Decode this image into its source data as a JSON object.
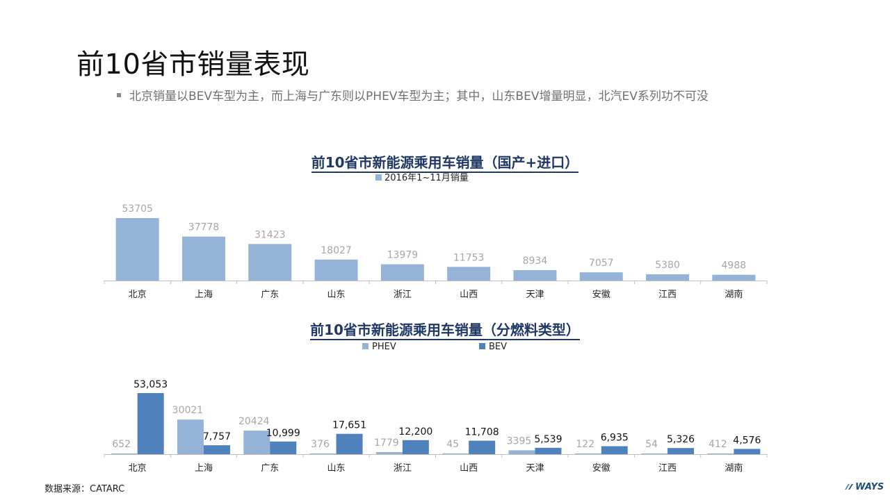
{
  "page": {
    "title": "前10省市销量表现",
    "bullet": "北京销量以BEV车型为主，而上海与广东则以PHEV车型为主；其中，山东BEV增量明显，北汽EV系列功不可没",
    "source": "数据来源：CATARC",
    "logo_text": "WAYS"
  },
  "colors": {
    "light_blue": "#95b3d7",
    "dark_blue": "#4f81bd",
    "title_navy": "#1f3864",
    "gray_label": "#a6a6a6",
    "axis": "#bfbfbf"
  },
  "chart_data": [
    {
      "type": "bar",
      "title": "前10省市新能源乘用车销量（国产+进口）",
      "categories": [
        "北京",
        "上海",
        "广东",
        "山东",
        "浙江",
        "山西",
        "天津",
        "安徽",
        "江西",
        "湖南"
      ],
      "series": [
        {
          "name": "2016年1~11月销量",
          "values": [
            53705,
            37778,
            31423,
            18027,
            13979,
            11753,
            8934,
            7057,
            5380,
            4988
          ],
          "labels": [
            "53705",
            "37778",
            "31423",
            "18027",
            "13979",
            "11753",
            "8934",
            "7057",
            "5380",
            "4988"
          ]
        }
      ],
      "legend_position": "top",
      "grid": false,
      "ylim": [
        0,
        53705
      ]
    },
    {
      "type": "bar",
      "title": "前10省市新能源乘用车销量（分燃料类型）",
      "categories": [
        "北京",
        "上海",
        "广东",
        "山东",
        "浙江",
        "山西",
        "天津",
        "安徽",
        "江西",
        "湖南"
      ],
      "series": [
        {
          "name": "PHEV",
          "values": [
            652,
            30021,
            20424,
            376,
            1779,
            45,
            3395,
            122,
            54,
            412
          ],
          "labels": [
            "652",
            "30021",
            "20424",
            "376",
            "1779",
            "45",
            "3395",
            "122",
            "54",
            "412"
          ]
        },
        {
          "name": "BEV",
          "values": [
            53053,
            7757,
            10999,
            17651,
            12200,
            11708,
            5539,
            6935,
            5326,
            4576
          ],
          "labels": [
            "53,053",
            "7,757",
            "10,999",
            "17,651",
            "12,200",
            "11,708",
            "5,539",
            "6,935",
            "5,326",
            "4,576"
          ]
        }
      ],
      "legend_position": "top",
      "grid": false,
      "ylim": [
        0,
        53053
      ]
    }
  ]
}
